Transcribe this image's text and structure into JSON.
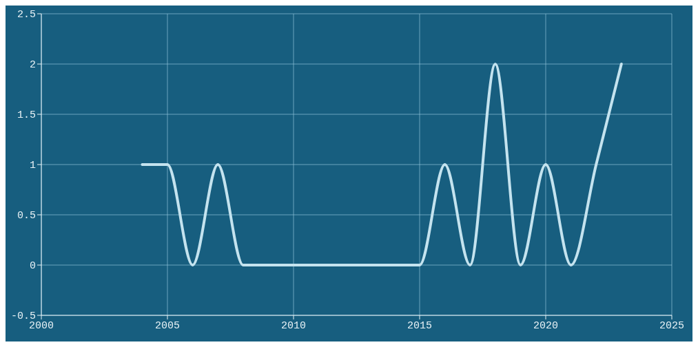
{
  "chart_data": {
    "type": "line",
    "x": [
      2004,
      2005,
      2006,
      2007,
      2008,
      2009,
      2010,
      2011,
      2012,
      2013,
      2014,
      2015,
      2016,
      2017,
      2018,
      2019,
      2020,
      2021,
      2022,
      2023
    ],
    "series": [
      {
        "color": "#c4e3ef",
        "values": [
          1,
          1,
          0,
          1,
          0,
          0,
          0,
          0,
          0,
          0,
          0,
          0,
          1,
          0,
          2,
          0,
          1,
          0,
          1,
          2
        ]
      }
    ],
    "xlim": [
      2000,
      2025
    ],
    "xticks": [
      2000,
      2005,
      2010,
      2015,
      2020,
      2025
    ],
    "ylim": [
      -0.5,
      2.5
    ],
    "yticks": [
      -0.5,
      0,
      0.5,
      1,
      1.5,
      2,
      2.5
    ],
    "grid": true,
    "marker": "none",
    "line_style": "solid",
    "legend": false
  }
}
